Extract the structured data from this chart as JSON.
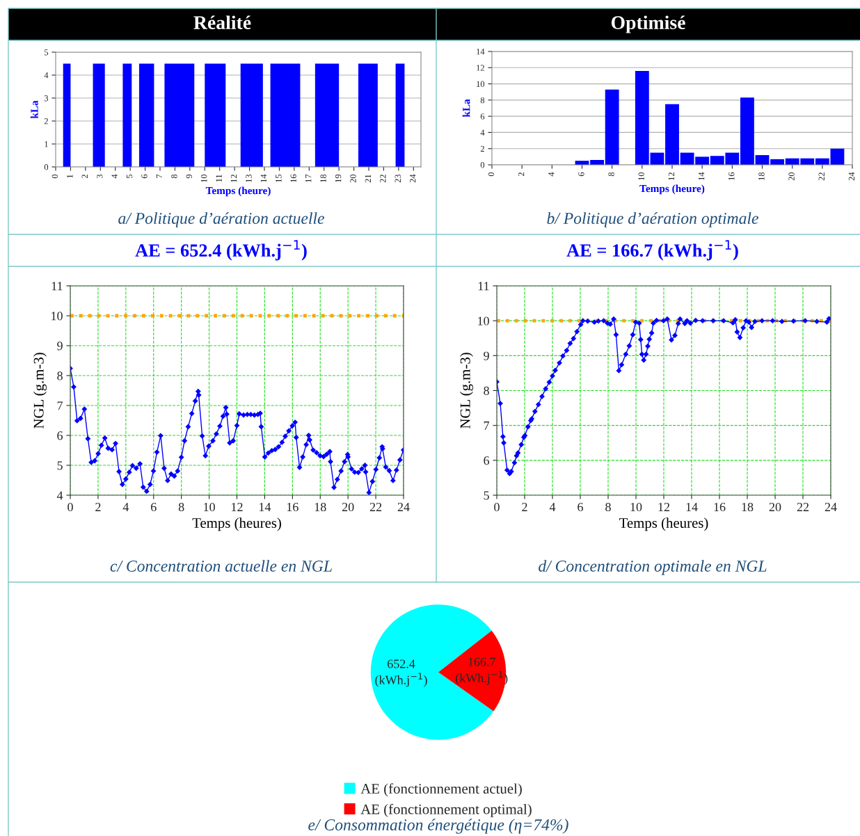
{
  "chart_data": [
    {
      "type": "histogram",
      "title": "Réalité",
      "xlabel": "Temps (heure)",
      "ylabel": "kLa",
      "bins": [
        0.5,
        1,
        2.5,
        3.3,
        4.5,
        5.1,
        5.6,
        6.6,
        7.3,
        9.3,
        10,
        11.4,
        12.4,
        13.9,
        14.4,
        16.4,
        17.4,
        19,
        20.3,
        21.6,
        22.8,
        23.4
      ],
      "values": [
        4.5,
        0,
        4.5,
        0,
        4.5,
        0,
        4.5,
        0,
        4.5,
        0,
        4.5,
        0,
        4.5,
        0,
        4.5,
        0,
        4.5,
        0,
        4.5,
        0,
        4.5
      ],
      "color": "#0000ff",
      "xlim": [
        0,
        24.5
      ],
      "ylim": [
        0,
        5
      ],
      "xticks": [
        0,
        1,
        2,
        3,
        4,
        5,
        6,
        7,
        8,
        9,
        10,
        11,
        12,
        13,
        14,
        15,
        16,
        17,
        18,
        19,
        20,
        21,
        22,
        23,
        24
      ],
      "yticks": [
        0,
        1,
        2,
        3,
        4,
        5
      ],
      "grid": "y",
      "annotations": [
        "a/ Politique d’aération actuelle",
        "AE = 652.4 (kWh.j$^{−1}$)"
      ]
    },
    {
      "type": "bar",
      "title": "Optimisé",
      "xlabel": "Temps (heure)",
      "ylabel": "kLa",
      "x": [
        6,
        7,
        8,
        10,
        11,
        12,
        13,
        14,
        15,
        16,
        17,
        18,
        19,
        20,
        21,
        22,
        23
      ],
      "values": [
        0.5,
        0.6,
        9.3,
        11.6,
        1.5,
        7.5,
        1.5,
        1.0,
        1.1,
        1.5,
        8.3,
        1.2,
        0.7,
        0.8,
        0.8,
        0.8,
        2.0
      ],
      "color": "#0000ff",
      "xlim": [
        0,
        24
      ],
      "ylim": [
        0,
        14
      ],
      "xticks": [
        0,
        2,
        4,
        6,
        8,
        10,
        12,
        14,
        16,
        18,
        20,
        22,
        24
      ],
      "yticks": [
        0,
        2,
        4,
        6,
        8,
        10,
        12,
        14
      ],
      "grid": "y",
      "annotations": [
        "b/ Politique d’aération optimale",
        "AE = 166.7 (kWh.j$^{−1}$)"
      ]
    },
    {
      "type": "line",
      "xlabel": "Temps (heures)",
      "ylabel": "NGL (g.m-3)",
      "color": "#0000ff",
      "marker": "diamond",
      "line_style": "solid",
      "x": [
        0,
        0.25,
        0.49,
        0.74,
        1.02,
        1.27,
        1.51,
        1.76,
        2.01,
        2.24,
        2.49,
        2.73,
        3.01,
        3.26,
        3.51,
        3.75,
        4.0,
        4.25,
        4.48,
        4.75,
        5.02,
        5.25,
        5.5,
        5.75,
        5.99,
        6.24,
        6.51,
        6.76,
        7.01,
        7.26,
        7.49,
        7.73,
        8.0,
        8.23,
        8.49,
        8.75,
        9.0,
        9.21,
        9.25,
        9.5,
        9.73,
        9.97,
        10.27,
        10.52,
        10.77,
        11.0,
        11.2,
        11.27,
        11.48,
        11.73,
        12.0,
        12.17,
        12.48,
        12.75,
        13.0,
        13.26,
        13.51,
        13.68,
        13.75,
        14.01,
        14.26,
        14.51,
        14.76,
        15.0,
        15.25,
        15.48,
        15.74,
        15.99,
        16.19,
        16.27,
        16.51,
        16.74,
        16.99,
        17.17,
        17.24,
        17.49,
        17.74,
        17.99,
        18.24,
        18.47,
        18.69,
        18.74,
        18.99,
        19.23,
        19.5,
        19.75,
        19.97,
        20.0,
        20.25,
        20.48,
        20.74,
        20.99,
        21.22,
        21.27,
        21.51,
        21.76,
        22.01,
        22.26,
        22.46,
        22.49,
        22.72,
        22.97,
        23.24,
        23.49,
        23.74,
        23.99
      ],
      "values": [
        8.24,
        7.62,
        6.49,
        6.57,
        6.88,
        5.89,
        5.1,
        5.15,
        5.39,
        5.67,
        5.91,
        5.57,
        5.52,
        5.73,
        4.79,
        4.36,
        4.54,
        4.77,
        4.99,
        4.9,
        5.05,
        4.27,
        4.13,
        4.36,
        4.81,
        5.44,
        5.99,
        4.9,
        4.49,
        4.71,
        4.64,
        4.81,
        5.27,
        5.82,
        6.29,
        6.73,
        7.15,
        7.47,
        7.35,
        5.98,
        5.32,
        5.64,
        5.82,
        6.05,
        6.31,
        6.64,
        6.93,
        6.71,
        5.75,
        5.82,
        6.33,
        6.72,
        6.68,
        6.7,
        6.7,
        6.68,
        6.7,
        6.74,
        6.29,
        5.28,
        5.41,
        5.49,
        5.53,
        5.62,
        5.77,
        5.97,
        6.15,
        6.32,
        6.44,
        5.93,
        4.93,
        5.28,
        5.69,
        6.0,
        5.85,
        5.51,
        5.42,
        5.32,
        5.29,
        5.37,
        5.46,
        5.12,
        4.26,
        4.53,
        4.81,
        5.12,
        5.36,
        5.28,
        4.88,
        4.77,
        4.76,
        4.88,
        5.0,
        4.78,
        4.09,
        4.46,
        4.86,
        5.25,
        5.62,
        5.55,
        4.94,
        4.82,
        4.49,
        4.84,
        5.18,
        5.51
      ],
      "xlim": [
        0,
        24
      ],
      "ylim": [
        4,
        11
      ],
      "xticks": [
        0,
        2,
        4,
        6,
        8,
        10,
        12,
        14,
        16,
        18,
        20,
        22,
        24
      ],
      "yticks": [
        4,
        5,
        6,
        7,
        8,
        9,
        10,
        11
      ],
      "grid": true,
      "ref_lines": [
        {
          "axis": "y",
          "value": 10,
          "color": "#ffa500",
          "line_style": "dotted"
        }
      ],
      "annotations": [
        "c/ Concentration actuelle en NGL"
      ]
    },
    {
      "type": "line",
      "xlabel": "Temps (heures)",
      "ylabel": "NGL (g.m-3)",
      "color": "#0000ff",
      "marker": "diamond",
      "line_style": "solid",
      "x": [
        0,
        0.25,
        0.44,
        0.5,
        0.74,
        0.92,
        1.04,
        1.27,
        1.42,
        1.52,
        1.76,
        1.94,
        2.02,
        2.24,
        2.44,
        2.51,
        2.74,
        2.99,
        3.25,
        3.51,
        3.77,
        4.0,
        4.2,
        4.5,
        4.75,
        5.02,
        5.27,
        5.51,
        5.76,
        6.03,
        6.19,
        6.53,
        7.01,
        7.3,
        7.68,
        7.95,
        8.15,
        8.4,
        8.57,
        8.77,
        8.97,
        9.27,
        9.52,
        9.77,
        9.98,
        10.23,
        10.34,
        10.43,
        10.56,
        10.73,
        10.85,
        10.96,
        11.13,
        11.25,
        11.48,
        11.98,
        12.25,
        12.55,
        12.8,
        13.04,
        13.17,
        13.51,
        13.67,
        13.91,
        14.29,
        14.79,
        15.55,
        16.3,
        16.97,
        17.14,
        17.27,
        17.47,
        17.71,
        17.91,
        18.11,
        18.31,
        18.55,
        19.06,
        19.82,
        20.49,
        21.32,
        22.16,
        23.0,
        23.72,
        23.87
      ],
      "values": [
        8.25,
        7.63,
        6.68,
        6.5,
        5.72,
        5.62,
        5.68,
        5.93,
        6.13,
        6.21,
        6.45,
        6.66,
        6.71,
        6.96,
        7.14,
        7.19,
        7.4,
        7.6,
        7.83,
        8.05,
        8.24,
        8.42,
        8.58,
        8.79,
        8.99,
        9.15,
        9.35,
        9.49,
        9.69,
        9.89,
        10.0,
        9.99,
        9.96,
        9.99,
        10.0,
        9.93,
        9.9,
        10.05,
        9.6,
        8.57,
        8.74,
        9.04,
        9.28,
        9.6,
        9.96,
        9.93,
        9.46,
        9.04,
        8.87,
        9.04,
        9.27,
        9.47,
        9.65,
        9.93,
        10.01,
        10.0,
        10.05,
        9.45,
        9.58,
        9.92,
        10.05,
        9.92,
        10.0,
        9.93,
        10.01,
        10.0,
        10.0,
        10.0,
        9.94,
        10.03,
        9.68,
        9.52,
        9.8,
        10.0,
        9.96,
        9.81,
        9.98,
        10.0,
        10.0,
        9.98,
        9.99,
        10.0,
        9.98,
        9.96,
        10.06
      ],
      "xlim": [
        0,
        24
      ],
      "ylim": [
        5,
        11
      ],
      "xticks": [
        0,
        2,
        4,
        6,
        8,
        10,
        12,
        14,
        16,
        18,
        20,
        22,
        24
      ],
      "yticks": [
        5,
        6,
        7,
        8,
        9,
        10,
        11
      ],
      "grid": true,
      "ref_lines": [
        {
          "axis": "y",
          "value": 10,
          "color": "#ffa500",
          "line_style": "dotted"
        }
      ],
      "annotations": [
        "d/ Concentration optimale en NGL"
      ]
    },
    {
      "type": "pie",
      "categories": [
        "AE (fonctionnement actuel)",
        "AE (fonctionnement optimal)"
      ],
      "values": [
        652.4,
        166.7
      ],
      "colors": [
        "#00ffff",
        "#ff0000"
      ],
      "value_labels": [
        "652.4\n(kWh.j$^{−1}$)",
        "166.7\n(kWh.j$^{−1}$)"
      ],
      "legend": "bottom",
      "annotations": [
        "e/ Consommation énergétique (η=74%)"
      ]
    }
  ]
}
